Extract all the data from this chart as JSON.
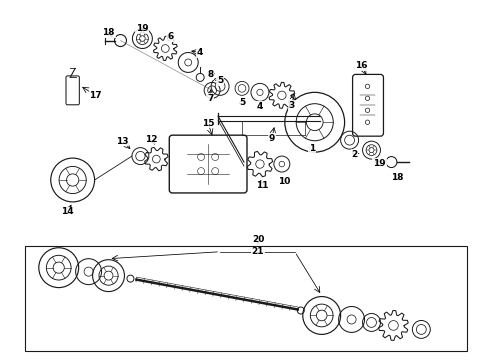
{
  "bg_color": "#ffffff",
  "line_color": "#1a1a1a",
  "fig_width": 4.9,
  "fig_height": 3.6,
  "dpi": 100,
  "upper_chain": {
    "comment": "diagonal chain from upper-left going down-right: 18,19,6,4,8,5,7,5,4,3,1,16",
    "items_x": [
      1.22,
      1.42,
      1.62,
      1.82,
      1.98,
      2.13,
      2.28,
      2.55,
      2.72,
      2.92,
      3.18,
      3.52
    ],
    "items_y": [
      3.22,
      3.14,
      3.05,
      2.93,
      2.81,
      2.72,
      2.63,
      2.6,
      2.58,
      2.56,
      2.45,
      2.4
    ]
  }
}
